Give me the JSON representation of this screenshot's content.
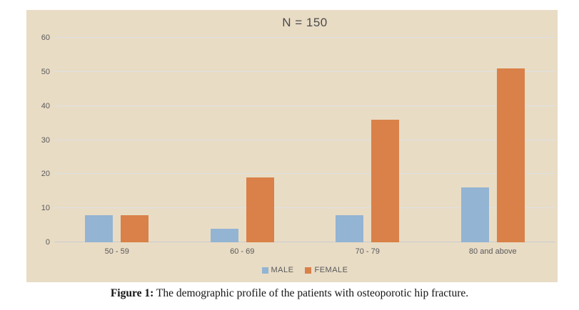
{
  "chart": {
    "title": "N = 150",
    "panel_bg": "#e9dcc5",
    "title_color": "#4a4a4a",
    "axis_text_color": "#595959",
    "gridline_color": "#dde1e4",
    "axisline_color": "#c9ccd1"
  },
  "chart_data": {
    "type": "bar",
    "title": "N = 150",
    "categories": [
      "50 - 59",
      "60 - 69",
      "70 - 79",
      "80 and above"
    ],
    "series": [
      {
        "name": "MALE",
        "color": "#93b4d3",
        "values": [
          8,
          4,
          8,
          16
        ]
      },
      {
        "name": "FEMALE",
        "color": "#d98148",
        "values": [
          8,
          19,
          36,
          51
        ]
      }
    ],
    "xlabel": "",
    "ylabel": "",
    "ylim": [
      0,
      60
    ],
    "yticks": [
      0,
      10,
      20,
      30,
      40,
      50,
      60
    ],
    "grid": true,
    "legend_position": "bottom"
  },
  "caption": {
    "label": "Figure 1:",
    "text": " The demographic profile of the patients with osteoporotic hip fracture."
  }
}
